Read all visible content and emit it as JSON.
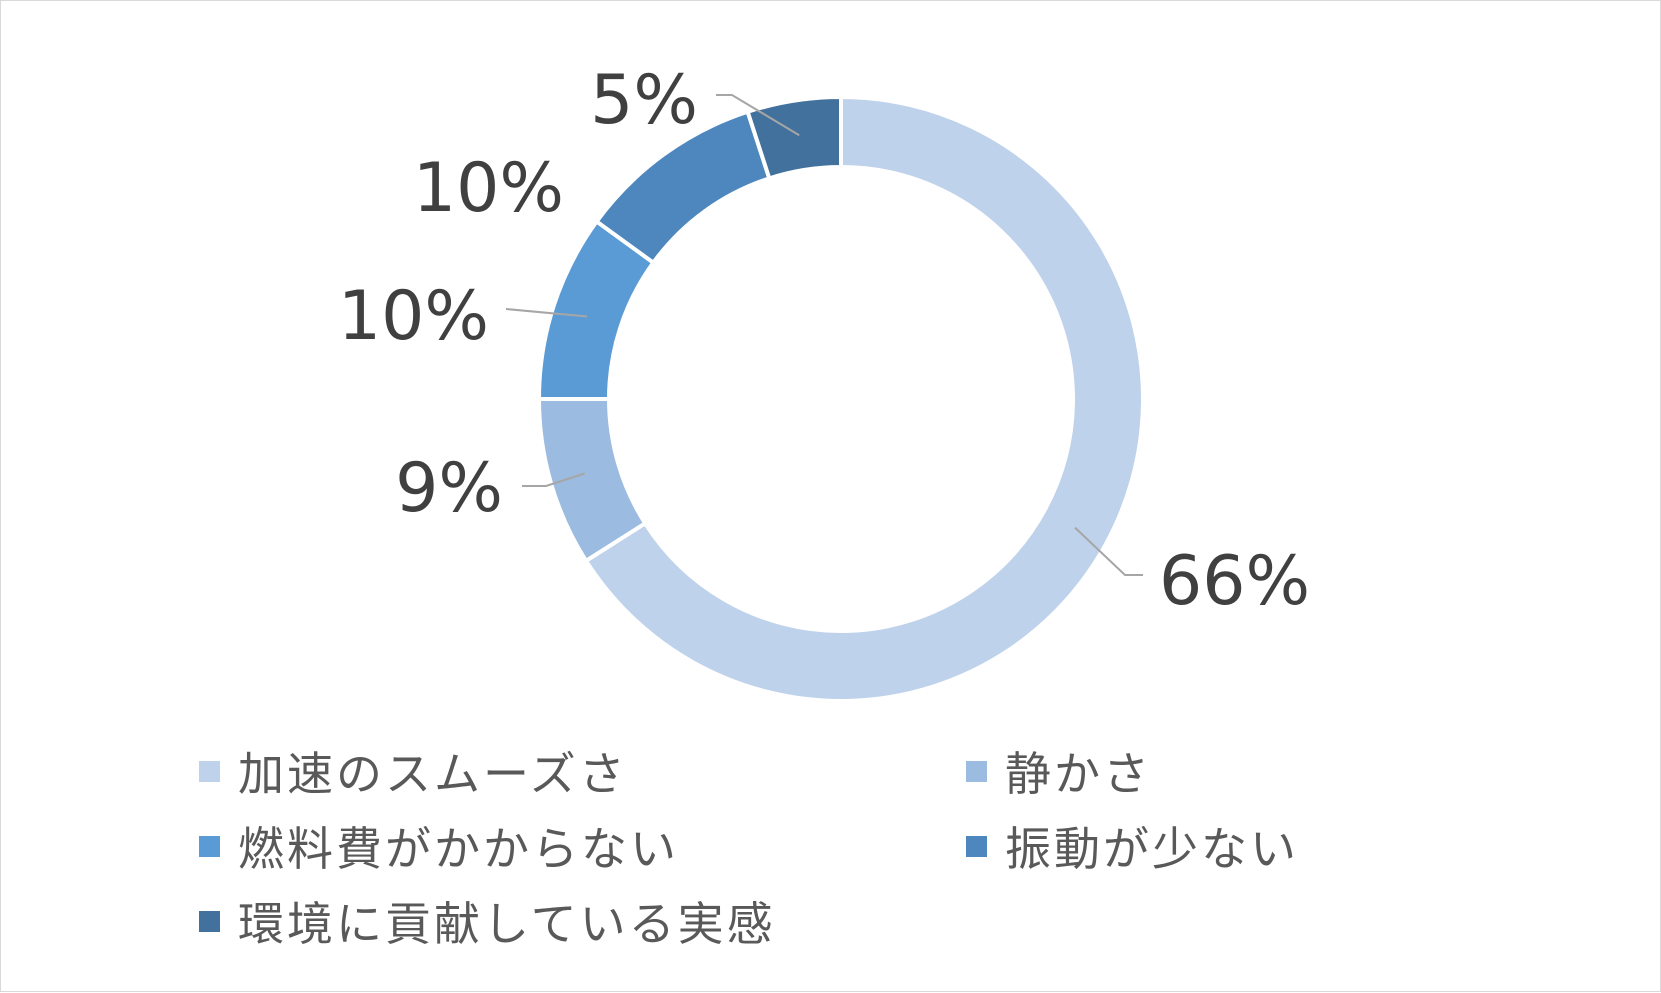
{
  "chart_data": {
    "type": "pie",
    "donut": true,
    "title": "",
    "categories": [
      "加速のスムーズさ",
      "静かさ",
      "燃料費がかからない",
      "振動が少ない",
      "環境に貢献している実感"
    ],
    "values": [
      66,
      9,
      10,
      10,
      5
    ],
    "labels": [
      "66%",
      "9%",
      "10%",
      "10%",
      "5%"
    ],
    "unit": "%",
    "colors": [
      "#bfd2eb",
      "#9bbbe0",
      "#5b9bd5",
      "#4e87bd",
      "#41719c"
    ],
    "legend_position": "bottom"
  }
}
